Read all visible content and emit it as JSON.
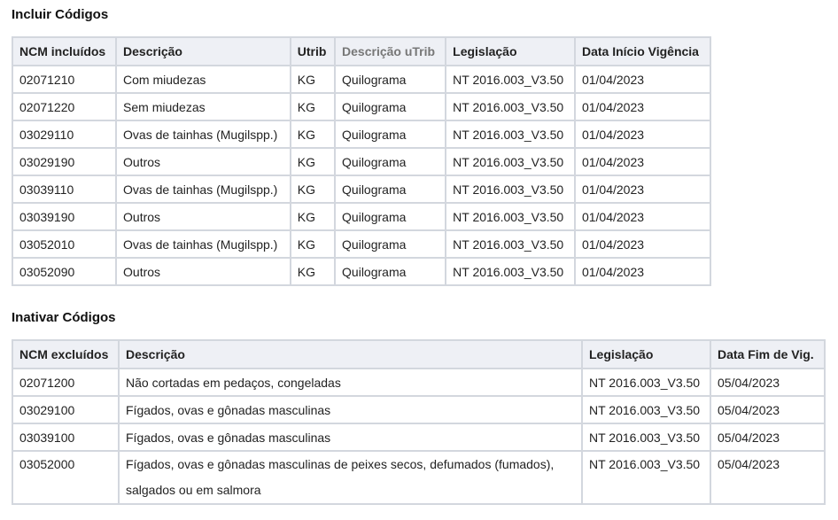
{
  "incluir": {
    "title": "Incluir Códigos",
    "headers": [
      "NCM incluídos",
      "Descrição",
      "Utrib",
      "Descrição uTrib",
      "Legislação",
      "Data Início Vigência"
    ],
    "rows": [
      [
        "02071210",
        "Com miudezas",
        "KG",
        "Quilograma",
        "NT 2016.003_V3.50",
        "01/04/2023"
      ],
      [
        "02071220",
        "Sem miudezas",
        "KG",
        "Quilograma",
        "NT 2016.003_V3.50",
        "01/04/2023"
      ],
      [
        "03029110",
        "Ovas de tainhas (Mugilspp.)",
        "KG",
        "Quilograma",
        "NT 2016.003_V3.50",
        "01/04/2023"
      ],
      [
        "03029190",
        "Outros",
        "KG",
        "Quilograma",
        "NT 2016.003_V3.50",
        "01/04/2023"
      ],
      [
        "03039110",
        "Ovas de tainhas (Mugilspp.)",
        "KG",
        "Quilograma",
        "NT 2016.003_V3.50",
        "01/04/2023"
      ],
      [
        "03039190",
        "Outros",
        "KG",
        "Quilograma",
        "NT 2016.003_V3.50",
        "01/04/2023"
      ],
      [
        "03052010",
        "Ovas de tainhas (Mugilspp.)",
        "KG",
        "Quilograma",
        "NT 2016.003_V3.50",
        "01/04/2023"
      ],
      [
        "03052090",
        "Outros",
        "KG",
        "Quilograma",
        "NT 2016.003_V3.50",
        "01/04/2023"
      ]
    ]
  },
  "inativar": {
    "title": "Inativar Códigos",
    "headers": [
      "NCM excluídos",
      "Descrição",
      "Legislação",
      "Data Fim de Vig."
    ],
    "rows": [
      [
        "02071200",
        "Não cortadas em pedaços, congeladas",
        "NT 2016.003_V3.50",
        "05/04/2023"
      ],
      [
        "03029100",
        "Fígados, ovas e gônadas masculinas",
        "NT 2016.003_V3.50",
        "05/04/2023"
      ],
      [
        "03039100",
        "Fígados, ovas e gônadas masculinas",
        "NT 2016.003_V3.50",
        "05/04/2023"
      ],
      [
        "03052000",
        "Fígados, ovas e gônadas masculinas de peixes secos, defumados (fumados), salgados ou em salmora",
        "NT 2016.003_V3.50",
        "05/04/2023"
      ]
    ]
  }
}
